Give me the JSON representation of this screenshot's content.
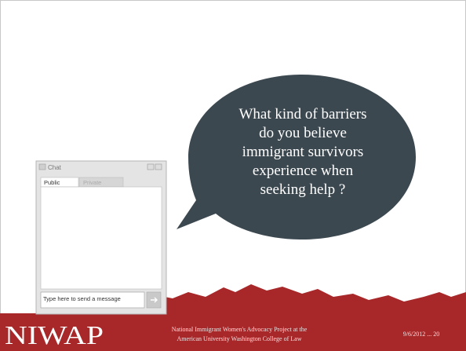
{
  "bubble": {
    "lines": [
      "What kind of barriers",
      "do you believe",
      "immigrant survivors",
      "experience when",
      "seeking  help ?"
    ]
  },
  "chat": {
    "title": "Chat",
    "tabs": [
      "Public",
      "Private"
    ],
    "input_placeholder": "Type here to send a message"
  },
  "footer": {
    "logo": "NIWAP",
    "org_lines": [
      "National Immigrant Women's Advocacy Project at the",
      "American University Washington College of Law"
    ],
    "slide_info": "9/6/2012 ... 20"
  }
}
